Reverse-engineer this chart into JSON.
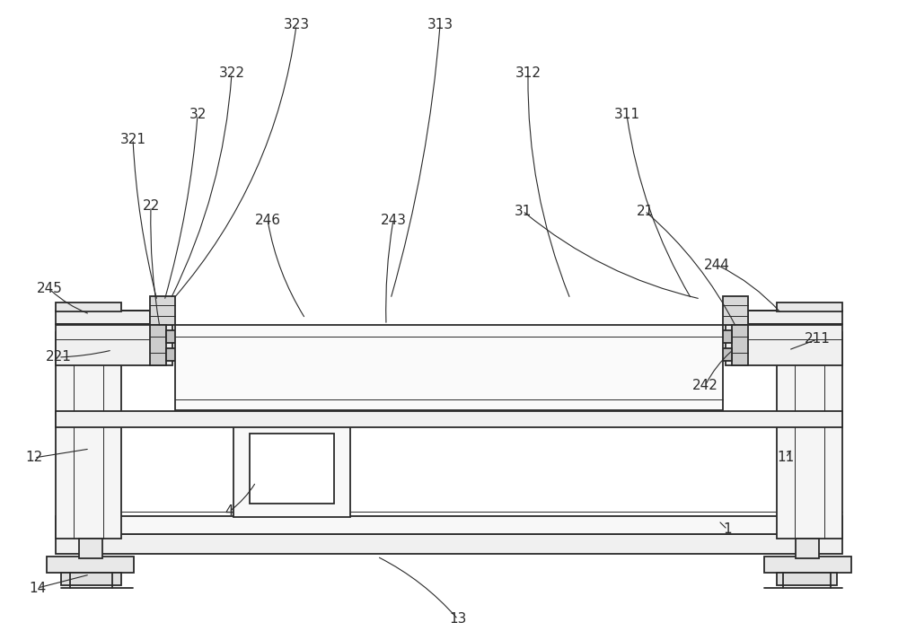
{
  "bg_color": "#ffffff",
  "line_color": "#2a2a2a",
  "lw": 1.3,
  "tlw": 0.7,
  "label_fontsize": 11,
  "leader_lw": 0.8
}
